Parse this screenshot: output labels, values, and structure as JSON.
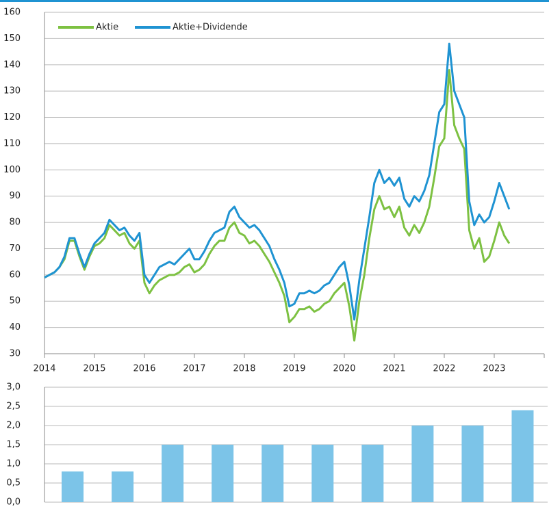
{
  "chart_data": [
    {
      "type": "line",
      "x": [
        2014,
        2014.1,
        2014.2,
        2014.3,
        2014.4,
        2014.5,
        2014.6,
        2014.7,
        2014.8,
        2014.9,
        2015,
        2015.1,
        2015.2,
        2015.3,
        2015.4,
        2015.5,
        2015.6,
        2015.7,
        2015.8,
        2015.9,
        2016,
        2016.1,
        2016.2,
        2016.3,
        2016.4,
        2016.5,
        2016.6,
        2016.7,
        2016.8,
        2016.9,
        2017,
        2017.1,
        2017.2,
        2017.3,
        2017.4,
        2017.5,
        2017.6,
        2017.7,
        2017.8,
        2017.9,
        2018,
        2018.1,
        2018.2,
        2018.3,
        2018.4,
        2018.5,
        2018.6,
        2018.7,
        2018.8,
        2018.9,
        2019,
        2019.1,
        2019.2,
        2019.3,
        2019.4,
        2019.5,
        2019.6,
        2019.7,
        2019.8,
        2019.9,
        2020,
        2020.1,
        2020.2,
        2020.3,
        2020.4,
        2020.5,
        2020.6,
        2020.7,
        2020.8,
        2020.9,
        2021,
        2021.1,
        2021.2,
        2021.3,
        2021.4,
        2021.5,
        2021.6,
        2021.7,
        2021.8,
        2021.9,
        2022,
        2022.1,
        2022.2,
        2022.3,
        2022.4,
        2022.5,
        2022.6,
        2022.7,
        2022.8,
        2022.9,
        2023,
        2023.1,
        2023.2,
        2023.3
      ],
      "series": [
        {
          "name": "Aktie",
          "color": "#7dc142",
          "values": [
            59,
            60,
            61,
            63,
            66,
            73,
            73,
            67,
            62,
            67,
            71,
            72,
            74,
            79,
            77,
            75,
            76,
            72,
            70,
            73,
            57,
            53,
            56,
            58,
            59,
            60,
            60,
            61,
            63,
            64,
            61,
            62,
            64,
            68,
            71,
            73,
            73,
            78,
            80,
            76,
            75,
            72,
            73,
            71,
            68,
            65,
            61,
            57,
            52,
            42,
            44,
            47,
            47,
            48,
            46,
            47,
            49,
            50,
            53,
            55,
            57,
            48,
            35,
            50,
            60,
            74,
            85,
            90,
            85,
            86,
            82,
            86,
            78,
            75,
            79,
            76,
            80,
            86,
            97,
            109,
            112,
            138,
            117,
            112,
            108,
            77,
            70,
            74,
            65,
            67,
            73,
            80,
            75,
            72
          ]
        },
        {
          "name": "Aktie+Dividende",
          "color": "#1f93d2",
          "values": [
            59,
            60,
            61,
            63,
            67,
            74,
            74,
            68,
            63,
            68,
            72,
            74,
            76,
            81,
            79,
            77,
            78,
            75,
            73,
            76,
            60,
            57,
            60,
            63,
            64,
            65,
            64,
            66,
            68,
            70,
            66,
            66,
            69,
            73,
            76,
            77,
            78,
            84,
            86,
            82,
            80,
            78,
            79,
            77,
            74,
            71,
            66,
            62,
            57,
            48,
            49,
            53,
            53,
            54,
            53,
            54,
            56,
            57,
            60,
            63,
            65,
            56,
            43,
            58,
            70,
            82,
            95,
            100,
            95,
            97,
            94,
            97,
            89,
            86,
            90,
            88,
            92,
            98,
            110,
            122,
            125,
            148,
            130,
            125,
            120,
            88,
            79,
            83,
            80,
            82,
            88,
            95,
            90,
            85
          ]
        }
      ],
      "xlim": [
        2014,
        2024
      ],
      "xticks": [
        2014,
        2015,
        2016,
        2017,
        2018,
        2019,
        2020,
        2021,
        2022,
        2023
      ],
      "ylim": [
        30,
        160
      ],
      "yticks": [
        30,
        40,
        50,
        60,
        70,
        80,
        90,
        100,
        110,
        120,
        130,
        140,
        150,
        160
      ],
      "grid": true,
      "legend": "top-left"
    },
    {
      "type": "bar",
      "categories": [
        null,
        null,
        null,
        null,
        null,
        null,
        null,
        null,
        null,
        null
      ],
      "values": [
        0.8,
        0.8,
        1.5,
        1.5,
        1.5,
        1.5,
        1.5,
        2.0,
        2.0,
        2.4
      ],
      "color": "#7cc4e8",
      "ylim": [
        0,
        3
      ],
      "yticks": [
        {
          "value": 0,
          "label": "0,0"
        },
        {
          "value": 0.5,
          "label": "0,5"
        },
        {
          "value": 1,
          "label": "1,0"
        },
        {
          "value": 1.5,
          "label": "1,5"
        },
        {
          "value": 2,
          "label": "2,0"
        },
        {
          "value": 2.5,
          "label": "2,5"
        },
        {
          "value": 3,
          "label": "3,0"
        }
      ],
      "grid": true
    }
  ]
}
